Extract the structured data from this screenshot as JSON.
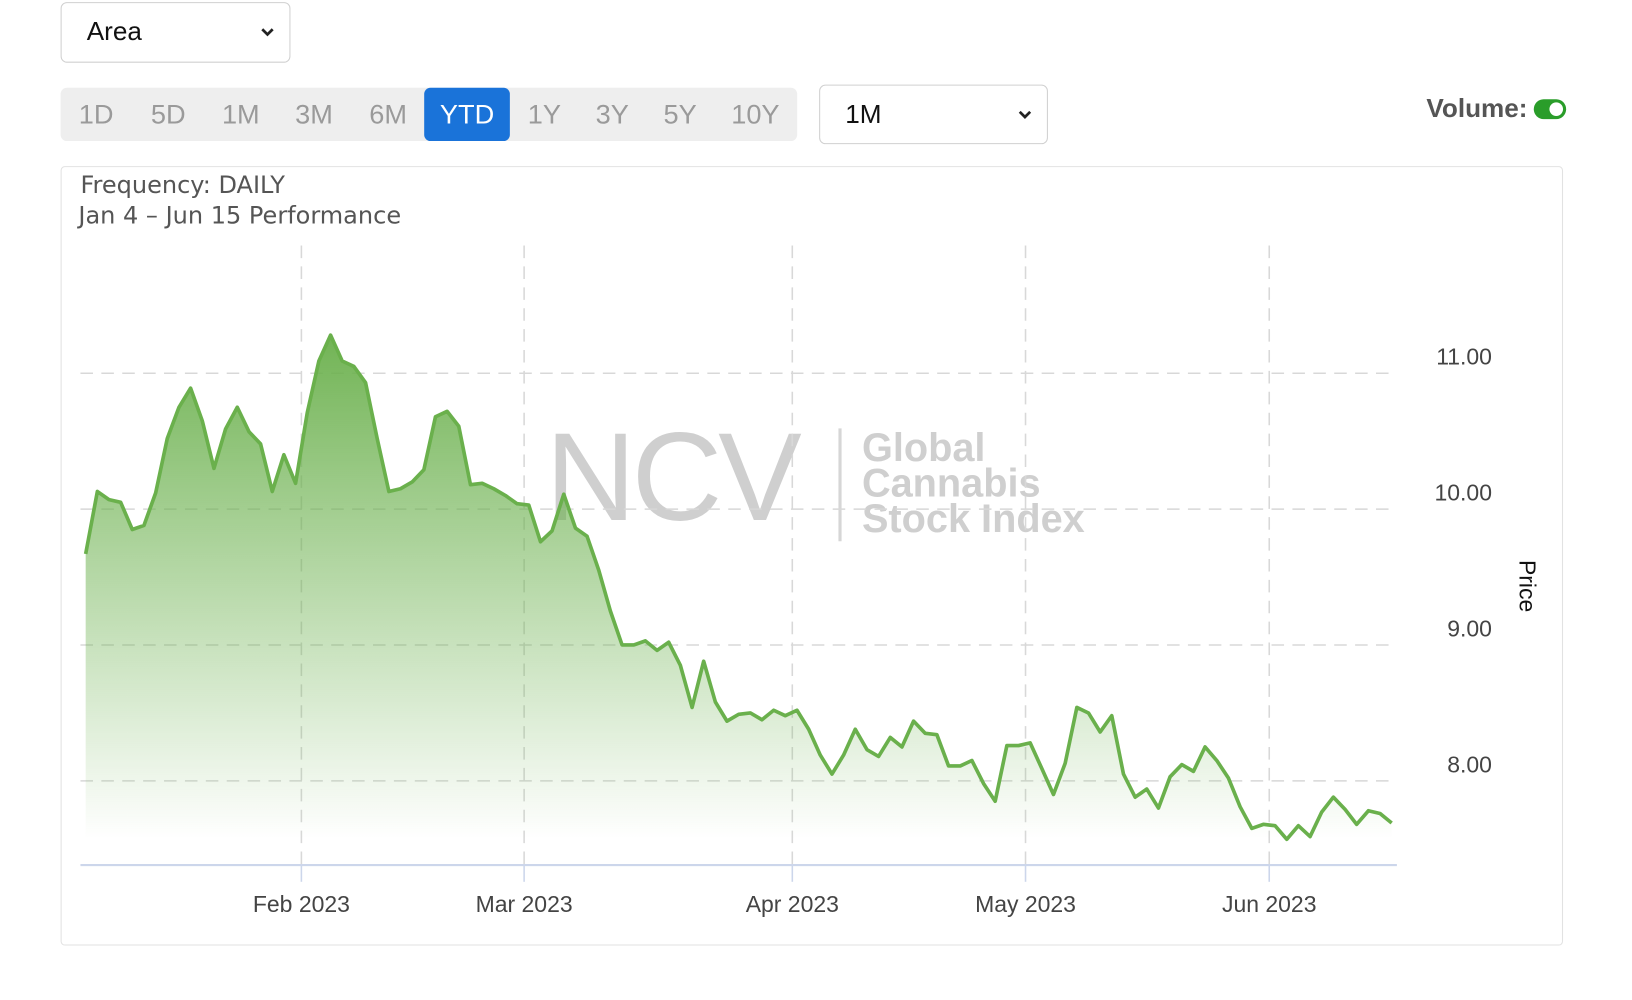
{
  "controls": {
    "chart_type": "Area",
    "ranges": [
      "1D",
      "5D",
      "1M",
      "3M",
      "6M",
      "YTD",
      "1Y",
      "3Y",
      "5Y",
      "10Y"
    ],
    "selected_range": "YTD",
    "interval": "1M",
    "volume_label": "Volume:",
    "volume_on": true
  },
  "chart_data": {
    "type": "area",
    "title": "Frequency: DAILY",
    "subtitle": "Jan 4 – Jun 15 Performance",
    "watermark": {
      "logo": "NCV",
      "lines": [
        "Global",
        "Cannabis",
        "Stock Index"
      ]
    },
    "y_label": "Price",
    "color": "#6ab04c",
    "grid": true,
    "values": [
      9.67,
      10.13,
      10.07,
      10.05,
      9.85,
      9.88,
      10.12,
      10.52,
      10.75,
      10.89,
      10.65,
      10.3,
      10.59,
      10.75,
      10.57,
      10.48,
      10.13,
      10.4,
      10.19,
      10.71,
      11.09,
      11.28,
      11.09,
      11.05,
      10.93,
      10.52,
      10.13,
      10.15,
      10.2,
      10.29,
      10.68,
      10.72,
      10.61,
      10.18,
      10.19,
      10.15,
      10.1,
      10.04,
      10.03,
      9.76,
      9.84,
      10.11,
      9.86,
      9.8,
      9.55,
      9.25,
      9.0,
      9.0,
      9.03,
      8.96,
      9.02,
      8.85,
      8.54,
      8.88,
      8.58,
      8.44,
      8.49,
      8.5,
      8.45,
      8.52,
      8.48,
      8.52,
      8.38,
      8.19,
      8.05,
      8.19,
      8.38,
      8.23,
      8.18,
      8.32,
      8.25,
      8.44,
      8.35,
      8.34,
      8.11,
      8.11,
      8.15,
      7.98,
      7.85,
      8.26,
      8.26,
      8.28,
      8.09,
      7.9,
      8.13,
      8.54,
      8.5,
      8.36,
      8.48,
      8.05,
      7.88,
      7.94,
      7.8,
      8.03,
      8.12,
      8.07,
      8.25,
      8.15,
      8.02,
      7.81,
      7.65,
      7.68,
      7.67,
      7.57,
      7.67,
      7.59,
      7.77,
      7.88,
      7.79,
      7.68,
      7.78,
      7.76,
      7.69
    ],
    "xlim": [
      0,
      112
    ],
    "xticks": [
      {
        "value": 18.5,
        "label": "Feb 2023"
      },
      {
        "value": 37.6,
        "label": "Mar 2023"
      },
      {
        "value": 60.6,
        "label": "Apr 2023"
      },
      {
        "value": 80.6,
        "label": "May 2023"
      },
      {
        "value": 101.5,
        "label": "Jun 2023"
      }
    ],
    "ylim": [
      7.38,
      11.94
    ],
    "yticks": [
      {
        "value": 8,
        "label": "8.00"
      },
      {
        "value": 9,
        "label": "9.00"
      },
      {
        "value": 10,
        "label": "10.00"
      },
      {
        "value": 11,
        "label": "11.00"
      }
    ]
  }
}
